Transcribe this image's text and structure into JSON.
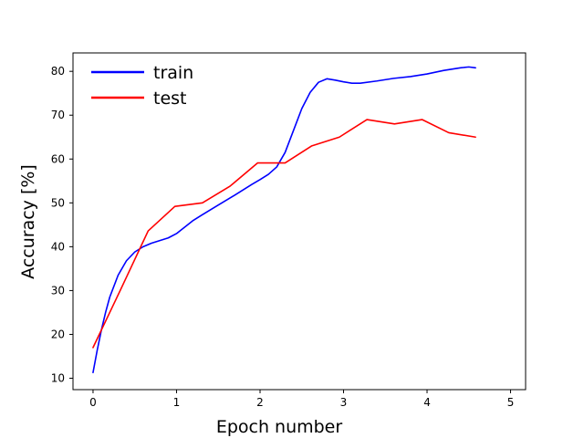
{
  "chart_data": {
    "type": "line",
    "xlabel": "Epoch number",
    "ylabel": "Accuracy [%]",
    "xlim": [
      -0.24,
      5.18
    ],
    "ylim": [
      7.4,
      84.2
    ],
    "x_ticks": [
      0,
      1,
      2,
      3,
      4,
      5
    ],
    "y_ticks": [
      10,
      20,
      30,
      40,
      50,
      60,
      70,
      80
    ],
    "grid": false,
    "legend_position": "top-left",
    "series": [
      {
        "name": "train",
        "color": "#0000ff",
        "x": [
          0,
          0.05,
          0.1,
          0.15,
          0.2,
          0.3,
          0.4,
          0.5,
          0.6,
          0.7,
          0.8,
          0.9,
          1.0,
          1.1,
          1.2,
          1.3,
          1.5,
          1.7,
          1.9,
          2.0,
          2.1,
          2.2,
          2.3,
          2.4,
          2.5,
          2.6,
          2.7,
          2.8,
          2.9,
          3.0,
          3.1,
          3.2,
          3.4,
          3.6,
          3.8,
          4.0,
          4.2,
          4.4,
          4.5,
          4.58
        ],
        "y": [
          11.3,
          16.4,
          21.0,
          25.0,
          28.5,
          33.5,
          36.8,
          38.8,
          40.0,
          40.8,
          41.4,
          42.0,
          43.0,
          44.5,
          46.0,
          47.2,
          49.5,
          51.8,
          54.2,
          55.3,
          56.5,
          58.2,
          61.5,
          66.5,
          71.5,
          75.2,
          77.5,
          78.3,
          78.0,
          77.6,
          77.3,
          77.3,
          77.8,
          78.4,
          78.8,
          79.4,
          80.2,
          80.8,
          81.0,
          80.8
        ]
      },
      {
        "name": "test",
        "color": "#ff0000",
        "x": [
          0,
          0.33,
          0.66,
          0.98,
          1.31,
          1.64,
          1.97,
          2.3,
          2.62,
          2.95,
          3.28,
          3.61,
          3.94,
          4.26,
          4.58
        ],
        "y": [
          17.0,
          30.2,
          43.6,
          49.2,
          50.0,
          53.8,
          59.1,
          59.1,
          63.0,
          65.0,
          69.0,
          68.0,
          69.0,
          66.0,
          65.0
        ]
      }
    ]
  }
}
